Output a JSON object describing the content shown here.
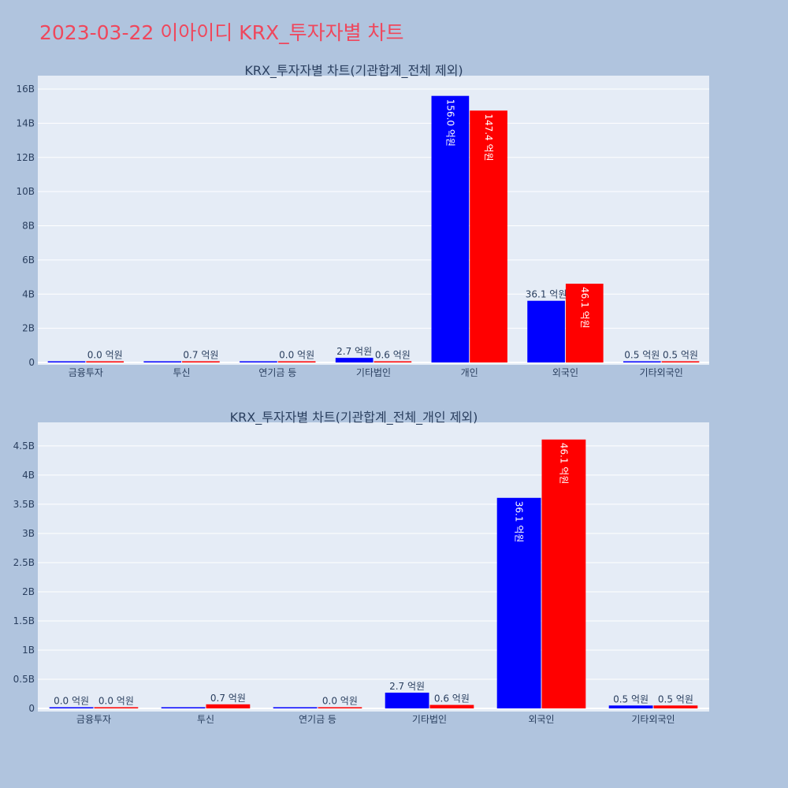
{
  "title": "2023-03-22 이아이디 KRX_투자자별 차트",
  "colors": {
    "buy": "#0000ff",
    "sell": "#ff0000",
    "plot_bg": "#e5ecf6",
    "page_bg": "#b0c4de"
  },
  "chart_data": [
    {
      "type": "bar",
      "title": "KRX_투자자별 차트(기관합계_전체 제외)",
      "categories": [
        "금융투자",
        "투신",
        "연기금 등",
        "기타법인",
        "개인",
        "외국인",
        "기타외국인"
      ],
      "series": [
        {
          "values": [
            0.0,
            0.0,
            0.0,
            2.7,
            156.0,
            36.1,
            0.5
          ],
          "labels": [
            null,
            null,
            null,
            "2.7 억원",
            "156.0 억원",
            "36.1 억원",
            "0.5 억원"
          ],
          "color": "#0000ff"
        },
        {
          "values": [
            0.0,
            0.7,
            0.0,
            0.6,
            147.4,
            46.1,
            0.5
          ],
          "labels": [
            "0.0 억원",
            "0.7 억원",
            "0.0 억원",
            "0.6 억원",
            "147.4 억원",
            "46.1 억원",
            "0.5 억원"
          ],
          "color": "#ff0000"
        }
      ],
      "yticks": [
        "0",
        "2B",
        "4B",
        "6B",
        "8B",
        "10B",
        "12B",
        "14B",
        "16B"
      ],
      "ytick_values_억원": [
        0,
        20,
        40,
        60,
        80,
        100,
        120,
        140,
        160
      ],
      "ylim_억원": [
        0,
        166
      ],
      "grid": true
    },
    {
      "type": "bar",
      "title": "KRX_투자자별 차트(기관합계_전체_개인 제외)",
      "categories": [
        "금융투자",
        "투신",
        "연기금 등",
        "기타법인",
        "외국인",
        "기타외국인"
      ],
      "series": [
        {
          "values": [
            0.0,
            0.0,
            0.0,
            2.7,
            36.1,
            0.5
          ],
          "labels": [
            "0.0 억원",
            null,
            null,
            "2.7 억원",
            "36.1 억원",
            "0.5 억원"
          ],
          "color": "#0000ff"
        },
        {
          "values": [
            0.0,
            0.7,
            0.0,
            0.6,
            46.1,
            0.5
          ],
          "labels": [
            "0.0 억원",
            "0.7 억원",
            "0.0 억원",
            "0.6 억원",
            "46.1 억원",
            "0.5 억원"
          ],
          "color": "#ff0000"
        }
      ],
      "yticks": [
        "0",
        "0.5B",
        "1B",
        "1.5B",
        "2B",
        "2.5B",
        "3B",
        "3.5B",
        "4B",
        "4.5B"
      ],
      "ytick_values_억원": [
        0,
        5,
        10,
        15,
        20,
        25,
        30,
        35,
        40,
        45
      ],
      "ylim_억원": [
        0,
        48.5
      ],
      "grid": true
    }
  ]
}
